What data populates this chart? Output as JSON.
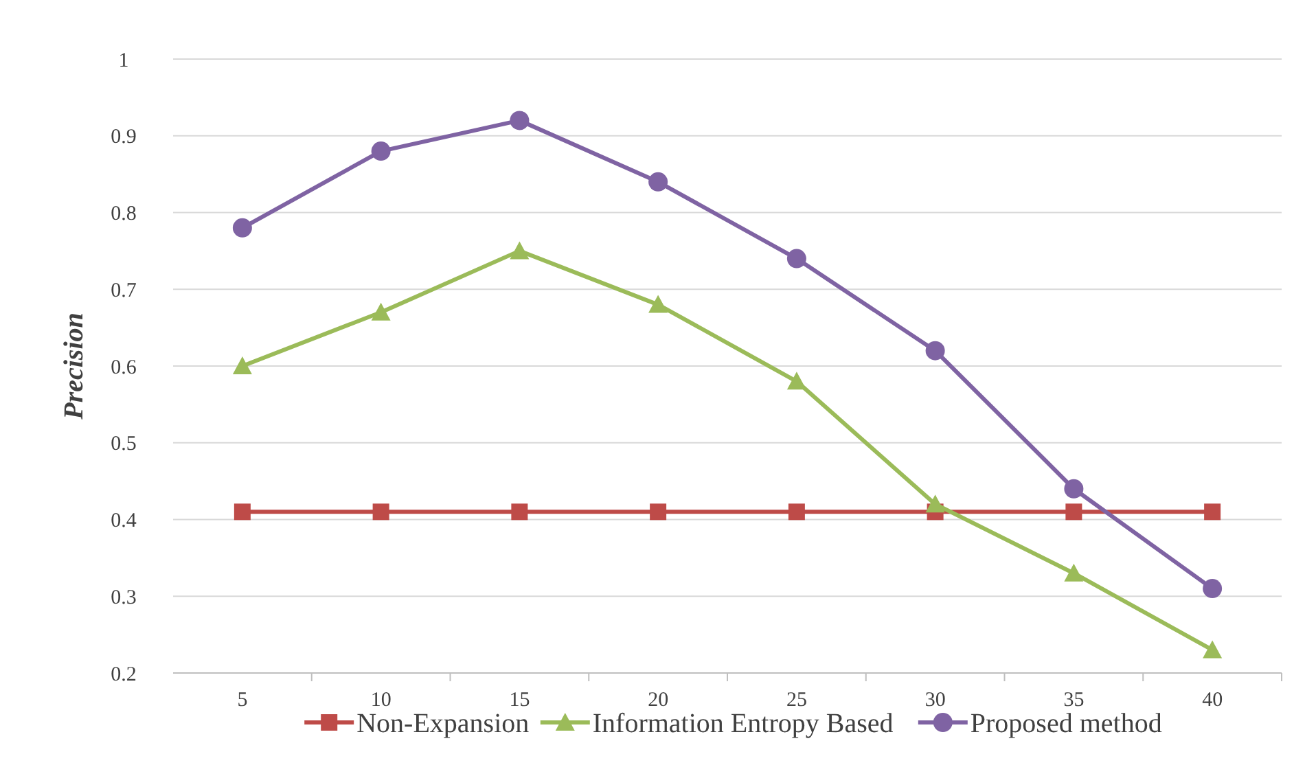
{
  "chart_data": {
    "type": "line",
    "ylabel": "Precision",
    "categories": [
      "5",
      "10",
      "15",
      "20",
      "25",
      "30",
      "35",
      "40"
    ],
    "series": [
      {
        "name": "Non-Expansion",
        "color": "#be4b48",
        "marker": "square",
        "values": [
          0.41,
          0.41,
          0.41,
          0.41,
          0.41,
          0.41,
          0.41,
          0.41
        ]
      },
      {
        "name": "Information Entropy Based",
        "color": "#9bbb59",
        "marker": "triangle",
        "values": [
          0.6,
          0.67,
          0.75,
          0.68,
          0.58,
          0.42,
          0.33,
          0.23
        ]
      },
      {
        "name": "Proposed method",
        "color": "#7f63a3",
        "marker": "circle",
        "values": [
          0.78,
          0.88,
          0.92,
          0.84,
          0.74,
          0.62,
          0.44,
          0.31
        ]
      }
    ],
    "ylim": [
      0.2,
      1
    ],
    "yticks": [
      0.2,
      0.3,
      0.4,
      0.5,
      0.6,
      0.7,
      0.8,
      0.9,
      1
    ],
    "grid": "y",
    "legend": "bottom"
  }
}
